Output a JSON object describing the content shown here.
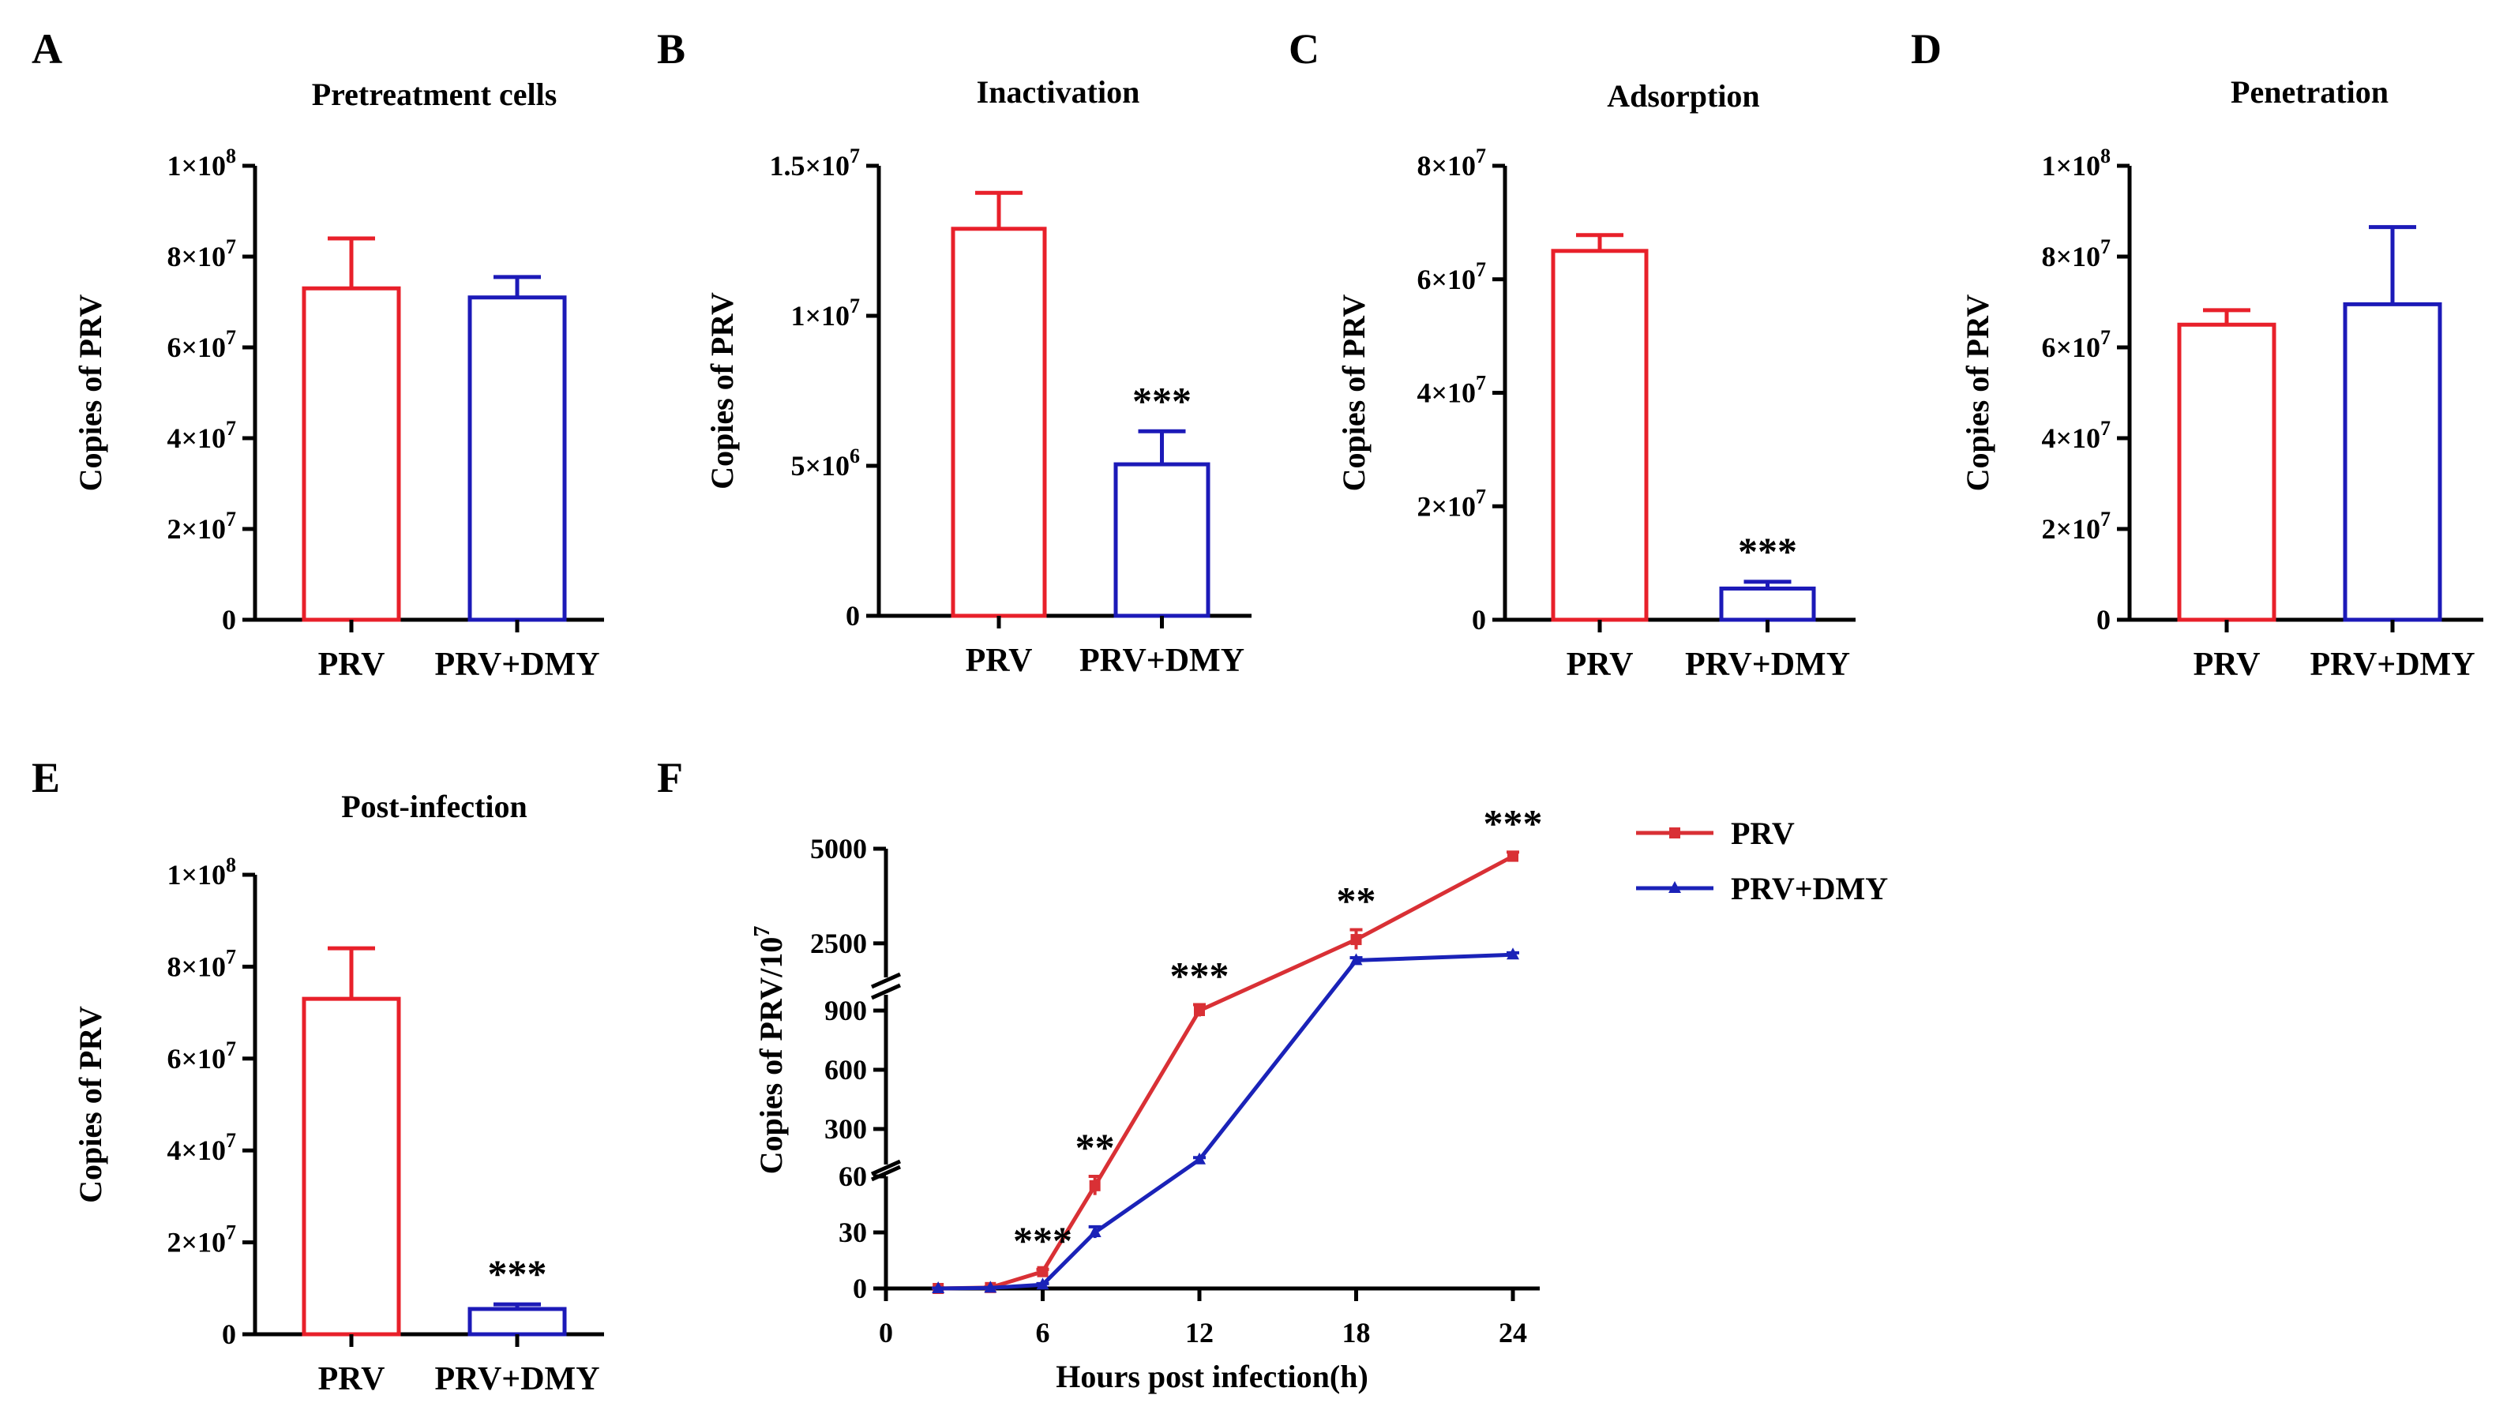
{
  "chart_data": [
    {
      "panel": "A",
      "type": "bar",
      "title": "Pretreatment cells",
      "ylabel": "Copies of  PRV",
      "ylim": [
        0,
        100000000
      ],
      "yticks": [
        "0",
        "2×10^7",
        "4×10^7",
        "6×10^7",
        "8×10^7",
        "1×10^8"
      ],
      "categories": [
        "PRV",
        "PRV+DMY"
      ],
      "values": [
        73000000,
        71000000
      ],
      "errors": [
        11000000,
        4500000
      ],
      "colors": [
        "#e8202a",
        "#1c1ab8"
      ],
      "significance": [
        "",
        ""
      ]
    },
    {
      "panel": "B",
      "type": "bar",
      "title": "Inactivation",
      "ylabel": "Copies of  PRV",
      "ylim": [
        0,
        15000000
      ],
      "yticks": [
        "0",
        "5×10^6",
        "1×10^7",
        "1.5×10^7"
      ],
      "categories": [
        "PRV",
        "PRV+DMY"
      ],
      "values": [
        12900000,
        5050000
      ],
      "errors": [
        1200000,
        1100000
      ],
      "colors": [
        "#e8202a",
        "#1c1ab8"
      ],
      "significance": [
        "",
        "***"
      ]
    },
    {
      "panel": "C",
      "type": "bar",
      "title": "Adsorption",
      "ylabel": "Copies of  PRV",
      "ylim": [
        0,
        80000000
      ],
      "yticks": [
        "0",
        "2×10^7",
        "4×10^7",
        "6×10^7",
        "8×10^7"
      ],
      "categories": [
        "PRV",
        "PRV+DMY"
      ],
      "values": [
        65000000,
        5500000
      ],
      "errors": [
        2800000,
        1200000
      ],
      "colors": [
        "#e8202a",
        "#1c1ab8"
      ],
      "significance": [
        "",
        "***"
      ]
    },
    {
      "panel": "D",
      "type": "bar",
      "title": "Penetration",
      "ylabel": "Copies of  PRV",
      "ylim": [
        0,
        100000000
      ],
      "yticks": [
        "0",
        "2×10^7",
        "4×10^7",
        "6×10^7",
        "8×10^7",
        "1×10^8"
      ],
      "categories": [
        "PRV",
        "PRV+DMY"
      ],
      "values": [
        65000000,
        69500000
      ],
      "errors": [
        3200000,
        17000000
      ],
      "colors": [
        "#e8202a",
        "#1c1ab8"
      ],
      "significance": [
        "",
        ""
      ]
    },
    {
      "panel": "E",
      "type": "bar",
      "title": "Post-infection",
      "ylabel": "Copies of  PRV",
      "ylim": [
        0,
        100000000
      ],
      "yticks": [
        "0",
        "2×10^7",
        "4×10^7",
        "6×10^7",
        "8×10^7",
        "1×10^8"
      ],
      "categories": [
        "PRV",
        "PRV+DMY"
      ],
      "values": [
        73000000,
        5500000
      ],
      "errors": [
        11000000,
        1000000
      ],
      "colors": [
        "#e8202a",
        "#1c1ab8"
      ],
      "significance": [
        "",
        "***"
      ]
    },
    {
      "panel": "F",
      "type": "line",
      "xlabel": "Hours post infection(h)",
      "ylabel_main": "Copies of PRV/10",
      "ylabel_sup": "7",
      "xlim": [
        0,
        26
      ],
      "xticks": [
        0,
        6,
        12,
        18,
        24
      ],
      "y_segments": [
        {
          "range": [
            0,
            60
          ],
          "ticks": [
            0,
            30,
            60
          ]
        },
        {
          "range": [
            120,
            980
          ],
          "ticks": [
            300,
            600,
            900
          ]
        },
        {
          "range": [
            1600,
            5000
          ],
          "ticks": [
            2500,
            5000
          ]
        }
      ],
      "x": [
        2,
        4,
        6,
        8,
        12,
        18,
        24
      ],
      "series": [
        {
          "name": "PRV",
          "color": "#d93035",
          "values": [
            0,
            0.5,
            9,
            55,
            900,
            2600,
            4800
          ],
          "errors": [
            0.3,
            0.3,
            1.2,
            5,
            30,
            260,
            110
          ]
        },
        {
          "name": "PRV+DMY",
          "color": "#1a22b8",
          "values": [
            0,
            0.3,
            2,
            30,
            145,
            2050,
            2200
          ],
          "errors": [
            0.2,
            0.2,
            0.6,
            3,
            10,
            70,
            50
          ]
        }
      ],
      "significance": [
        {
          "x": 6,
          "label": "***"
        },
        {
          "x": 8,
          "label": "**"
        },
        {
          "x": 12,
          "label": "***"
        },
        {
          "x": 18,
          "label": "**"
        },
        {
          "x": 24,
          "label": "***"
        }
      ]
    }
  ]
}
